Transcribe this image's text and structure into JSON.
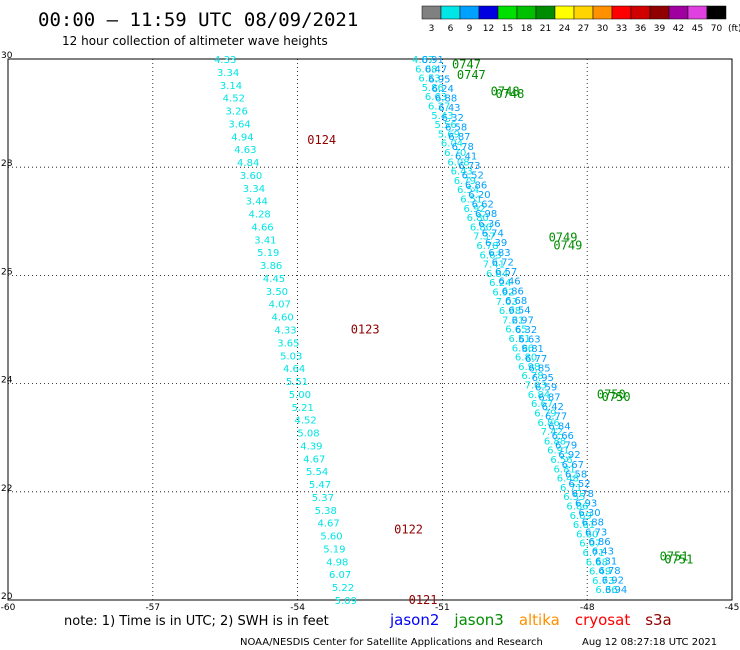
{
  "header": {
    "title": "00:00 – 11:59 UTC 08/09/2021",
    "subtitle": "12 hour collection of altimeter wave heights"
  },
  "legend": {
    "unit": "(ft)",
    "bins": [
      {
        "label": "3",
        "color": "#808080"
      },
      {
        "label": "6",
        "color": "#00e5e5"
      },
      {
        "label": "9",
        "color": "#00a0ff"
      },
      {
        "label": "12",
        "color": "#0000e0"
      },
      {
        "label": "15",
        "color": "#00e000"
      },
      {
        "label": "18",
        "color": "#00c000"
      },
      {
        "label": "21",
        "color": "#008c00"
      },
      {
        "label": "24",
        "color": "#ffff00"
      },
      {
        "label": "27",
        "color": "#ffd400"
      },
      {
        "label": "30",
        "color": "#ff9000"
      },
      {
        "label": "33",
        "color": "#ff0000"
      },
      {
        "label": "36",
        "color": "#d00000"
      },
      {
        "label": "39",
        "color": "#900000"
      },
      {
        "label": "42",
        "color": "#a000a0"
      },
      {
        "label": "45",
        "color": "#e040e0"
      },
      {
        "label": "70",
        "color": "#000000"
      }
    ]
  },
  "footer": {
    "note": "note: 1) Time is in UTC; 2) SWH is in feet",
    "satellites": [
      {
        "name": "jason2",
        "color": "#0000ff"
      },
      {
        "name": "jason3",
        "color": "#008c00"
      },
      {
        "name": "altika",
        "color": "#ff9000"
      },
      {
        "name": "cryosat",
        "color": "#ff0000"
      },
      {
        "name": "s3a",
        "color": "#900000"
      }
    ],
    "credit": "NOAA/NESDIS Center for Satellite Applications and Research",
    "timestamp": "Aug 12 08:27:18 UTC 2021"
  },
  "chart_data": {
    "type": "scatter",
    "xlim": [
      -60,
      -45
    ],
    "ylim": [
      20,
      30
    ],
    "xticks": [
      "-60",
      "-57",
      "-54",
      "-51",
      "-48",
      "-45"
    ],
    "yticks": [
      "20",
      "22",
      "24",
      "26",
      "28",
      "30"
    ],
    "grid": true,
    "tracks": [
      {
        "color": "#00e5e5",
        "lon_start": -55.5,
        "lat_start": 30.0,
        "lon_end": -53.0,
        "lat_end": 20.0,
        "values": [
          "4.33",
          "3.34",
          "3.14",
          "4.52",
          "3.26",
          "3.64",
          "4.94",
          "4.63",
          "4.84",
          "3.60",
          "3.34",
          "3.44",
          "4.28",
          "4.66",
          "3.41",
          "5.19",
          "3.86",
          "4.45",
          "3.50",
          "4.07",
          "4.60",
          "4.33",
          "3.65",
          "5.03",
          "4.64",
          "5.51",
          "5.00",
          "5.21",
          "4.52",
          "5.08",
          "4.39",
          "4.67",
          "5.54",
          "5.47",
          "5.37",
          "5.38",
          "4.67",
          "5.60",
          "5.19",
          "4.98",
          "6.07",
          "5.22",
          "5.09"
        ]
      },
      {
        "color": "#00e5e5",
        "lon_start": -51.4,
        "lat_start": 30.0,
        "lon_end": -47.6,
        "lat_end": 20.2,
        "values": [
          "4.87",
          "6.08",
          "6.53",
          "5.86",
          "6.63",
          "6.27",
          "5.43",
          "5.56",
          "5.69",
          "6.04",
          "6.70",
          "6.08",
          "6.43",
          "6.79",
          "6.54",
          "6.51",
          "6.92",
          "6.80",
          "6.80",
          "7.37",
          "6.78",
          "6.63",
          "7.41",
          "6.84",
          "6.24",
          "6.92",
          "7.03",
          "6.98",
          "7.21",
          "6.65",
          "6.51",
          "6.96",
          "6.80",
          "6.98",
          "6.78",
          "7.03",
          "6.84",
          "6.67",
          "6.79",
          "6.86",
          "7.42",
          "6.88",
          "6.91",
          "6.56",
          "6.81",
          "6.48",
          "6.71",
          "6.55",
          "6.86",
          "6.69",
          "6.61",
          "6.60",
          "6.07",
          "6.71",
          "6.68",
          "6.49",
          "6.73",
          "6.36"
        ]
      },
      {
        "color": "#00a0ff",
        "lon_start": -51.2,
        "lat_start": 30.0,
        "lon_end": -47.4,
        "lat_end": 20.2,
        "values": [
          "6.91",
          "6.47",
          "6.95",
          "6.24",
          "6.88",
          "6.43",
          "6.32",
          "6.58",
          "6.87",
          "6.78",
          "6.41",
          "6.73",
          "6.52",
          "6.86",
          "6.20",
          "6.62",
          "6.98",
          "6.36",
          "6.74",
          "6.39",
          "6.83",
          "6.72",
          "6.57",
          "6.46",
          "6.86",
          "6.68",
          "6.54",
          "6.97",
          "6.32",
          "6.63",
          "6.81",
          "6.77",
          "6.85",
          "6.95",
          "6.59",
          "6.87",
          "6.42",
          "6.77",
          "6.84",
          "6.66",
          "6.79",
          "6.92",
          "6.67",
          "6.58",
          "6.52",
          "6.78",
          "6.93",
          "6.30",
          "6.88",
          "6.73",
          "6.86",
          "6.43",
          "6.31",
          "6.78",
          "6.92",
          "6.94"
        ]
      }
    ],
    "time_labels": [
      {
        "text": "0124",
        "lon": -53.8,
        "lat": 28.5,
        "color": "#900000"
      },
      {
        "text": "0123",
        "lon": -52.9,
        "lat": 25.0,
        "color": "#900000"
      },
      {
        "text": "0122",
        "lon": -52.0,
        "lat": 21.3,
        "color": "#900000"
      },
      {
        "text": "0121",
        "lon": -51.7,
        "lat": 20.0,
        "color": "#900000"
      },
      {
        "text": "0747",
        "lon": -50.8,
        "lat": 29.9,
        "color": "#008c00"
      },
      {
        "text": "0747",
        "lon": -50.7,
        "lat": 29.7,
        "color": "#008c00"
      },
      {
        "text": "0748",
        "lon": -50.0,
        "lat": 29.4,
        "color": "#008c00"
      },
      {
        "text": "0748",
        "lon": -49.9,
        "lat": 29.35,
        "color": "#008c00"
      },
      {
        "text": "0749",
        "lon": -48.8,
        "lat": 26.7,
        "color": "#008c00"
      },
      {
        "text": "0749",
        "lon": -48.7,
        "lat": 26.55,
        "color": "#008c00"
      },
      {
        "text": "0750",
        "lon": -47.8,
        "lat": 23.8,
        "color": "#008c00"
      },
      {
        "text": "0750",
        "lon": -47.7,
        "lat": 23.75,
        "color": "#008c00"
      },
      {
        "text": "0751",
        "lon": -46.5,
        "lat": 20.8,
        "color": "#008c00"
      },
      {
        "text": "0751",
        "lon": -46.4,
        "lat": 20.75,
        "color": "#008c00"
      }
    ]
  }
}
